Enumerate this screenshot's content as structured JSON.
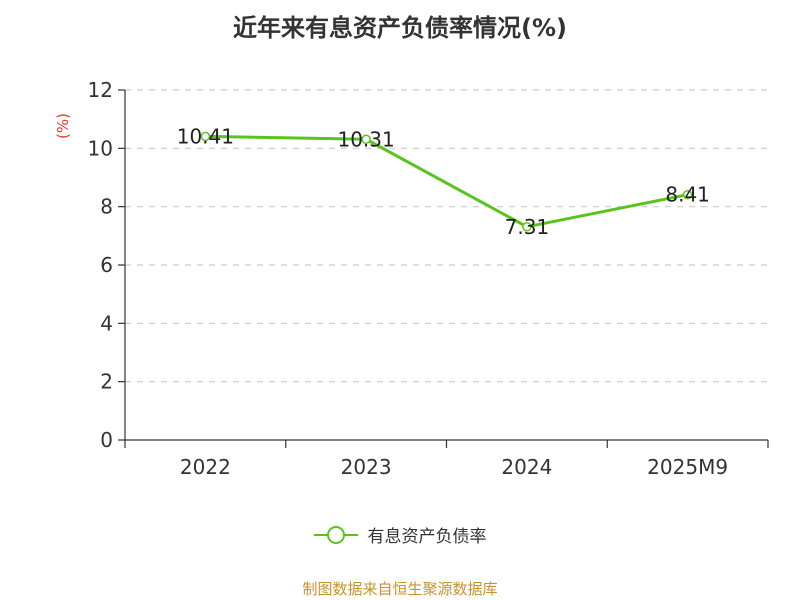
{
  "chart_data": {
    "type": "line",
    "title": "近年来有息资产负债率情况(%)",
    "ylabel": "(%)",
    "categories": [
      "2022",
      "2023",
      "2024",
      "2025M9"
    ],
    "series": [
      {
        "name": "有息资产负债率",
        "values": [
          10.41,
          10.31,
          7.31,
          8.41
        ],
        "labels": [
          "10.41",
          "10.31",
          "7.31",
          "8.41"
        ],
        "color": "#5ac41f"
      }
    ],
    "ylim": [
      0,
      12
    ],
    "yticks": [
      "0",
      "2",
      "4",
      "6",
      "8",
      "10",
      "12"
    ],
    "grid": true,
    "legend_position": "bottom",
    "ylabel_color": "#e8392c"
  },
  "source": "制图数据来自恒生聚源数据库"
}
